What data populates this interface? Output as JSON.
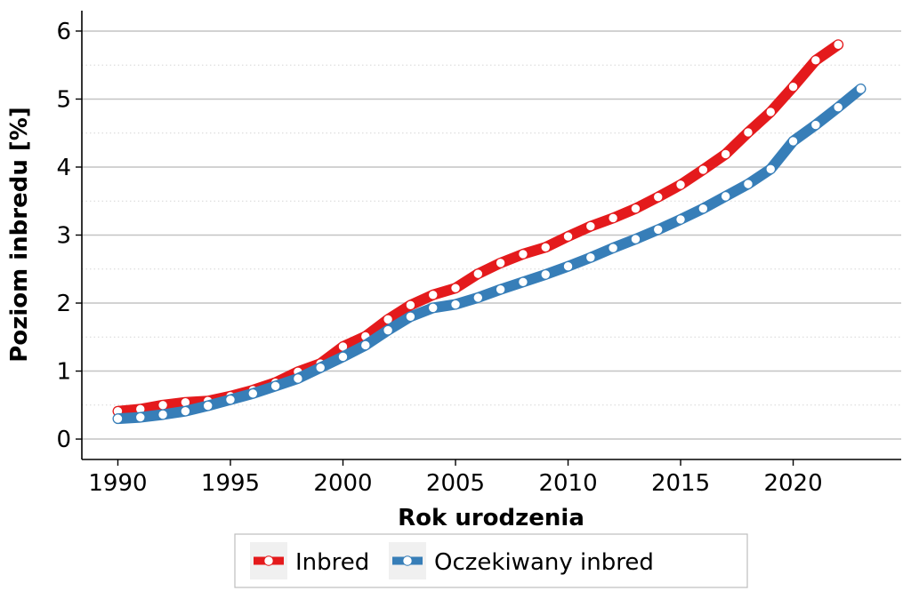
{
  "chart_data": {
    "type": "line",
    "title": "",
    "xlabel": "Rok urodzenia",
    "ylabel": "Poziom inbredu [%]",
    "xlim": [
      1988.4,
      2024.8
    ],
    "ylim": [
      -0.3,
      6.3
    ],
    "xticks": [
      "1990",
      "1995",
      "2000",
      "2005",
      "2010",
      "2015",
      "2020"
    ],
    "yticks": [
      "0",
      "1",
      "2",
      "3",
      "4",
      "5",
      "6"
    ],
    "grid": "horizontal",
    "legend_position": "bottom",
    "series": [
      {
        "name": "Inbred",
        "color": "#e41a1c",
        "x": [
          1990,
          1991,
          1992,
          1993,
          1994,
          1995,
          1996,
          1997,
          1998,
          1999,
          2000,
          2001,
          2002,
          2003,
          2004,
          2005,
          2006,
          2007,
          2008,
          2009,
          2010,
          2011,
          2012,
          2013,
          2014,
          2015,
          2016,
          2017,
          2018,
          2019,
          2020,
          2021,
          2022
        ],
        "y": [
          0.41,
          0.44,
          0.5,
          0.54,
          0.56,
          0.63,
          0.72,
          0.83,
          0.99,
          1.11,
          1.36,
          1.51,
          1.76,
          1.97,
          2.12,
          2.22,
          2.43,
          2.59,
          2.72,
          2.82,
          2.98,
          3.13,
          3.25,
          3.39,
          3.56,
          3.74,
          3.96,
          4.19,
          4.51,
          4.81,
          5.18,
          5.57,
          5.8
        ]
      },
      {
        "name": "Oczekiwany inbred",
        "color": "#377eb8",
        "x": [
          1990,
          1991,
          1992,
          1993,
          1994,
          1995,
          1996,
          1997,
          1998,
          1999,
          2000,
          2001,
          2002,
          2003,
          2004,
          2005,
          2006,
          2007,
          2008,
          2009,
          2010,
          2011,
          2012,
          2013,
          2014,
          2015,
          2016,
          2017,
          2018,
          2019,
          2020,
          2021,
          2022,
          2023
        ],
        "y": [
          0.3,
          0.32,
          0.36,
          0.41,
          0.49,
          0.58,
          0.67,
          0.78,
          0.89,
          1.05,
          1.21,
          1.38,
          1.6,
          1.8,
          1.93,
          1.98,
          2.08,
          2.2,
          2.31,
          2.42,
          2.54,
          2.67,
          2.81,
          2.94,
          3.08,
          3.23,
          3.39,
          3.57,
          3.75,
          3.97,
          4.38,
          4.62,
          4.88,
          5.15
        ]
      }
    ]
  }
}
